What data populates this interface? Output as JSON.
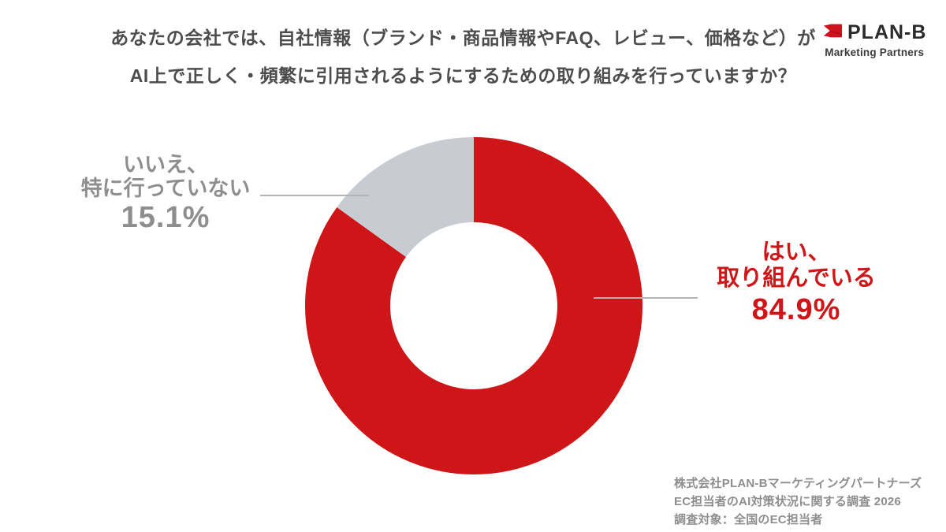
{
  "theme": {
    "accent_red": "#CE1518",
    "slice_gray": "#C8CCD2",
    "label_gray": "#8E8E8E",
    "title_color": "#4D4D4D",
    "leader_line_color": "#B4B4B4",
    "logo_dark": "#2B2B2B"
  },
  "header": {
    "title_line1": "あなたの会社では、自社情報（ブランド・商品情報やFAQ、レビュー、価格など）が",
    "title_line2": "AI上で正しく・頻繁に引用されるようにするための取り組みを行っていますか？"
  },
  "logo": {
    "brand": "PLAN-B",
    "tagline": "Marketing Partners"
  },
  "chart_data": {
    "type": "pie",
    "variant": "donut",
    "title": "あなたの会社では、自社情報（ブランド・商品情報やFAQ、レビュー、価格など）がAI上で正しく・頻繁に引用されるようにするための取り組みを行っていますか？",
    "labels": [
      "はい、取り組んでいる",
      "いいえ、特に行っていない"
    ],
    "values": [
      84.9,
      15.1
    ],
    "unit": "%",
    "colors": [
      "#CE1518",
      "#C8CCD2"
    ],
    "start_angle": "top",
    "direction": "clockwise",
    "inner_radius_ratio": 0.5,
    "legend_position": "callouts"
  },
  "callout_yes": {
    "line1": "はい、",
    "line2": "取り組んでいる",
    "value": "84.9%"
  },
  "callout_no": {
    "line1": "いいえ、",
    "line2": "特に行っていない",
    "value": "15.1%"
  },
  "source": {
    "line1": "株式会社PLAN-Bマーケティングパートナーズ",
    "line2": "EC担当者のAI対策状況に関する調査 2026",
    "line3": "調査対象：全国のEC担当者"
  }
}
